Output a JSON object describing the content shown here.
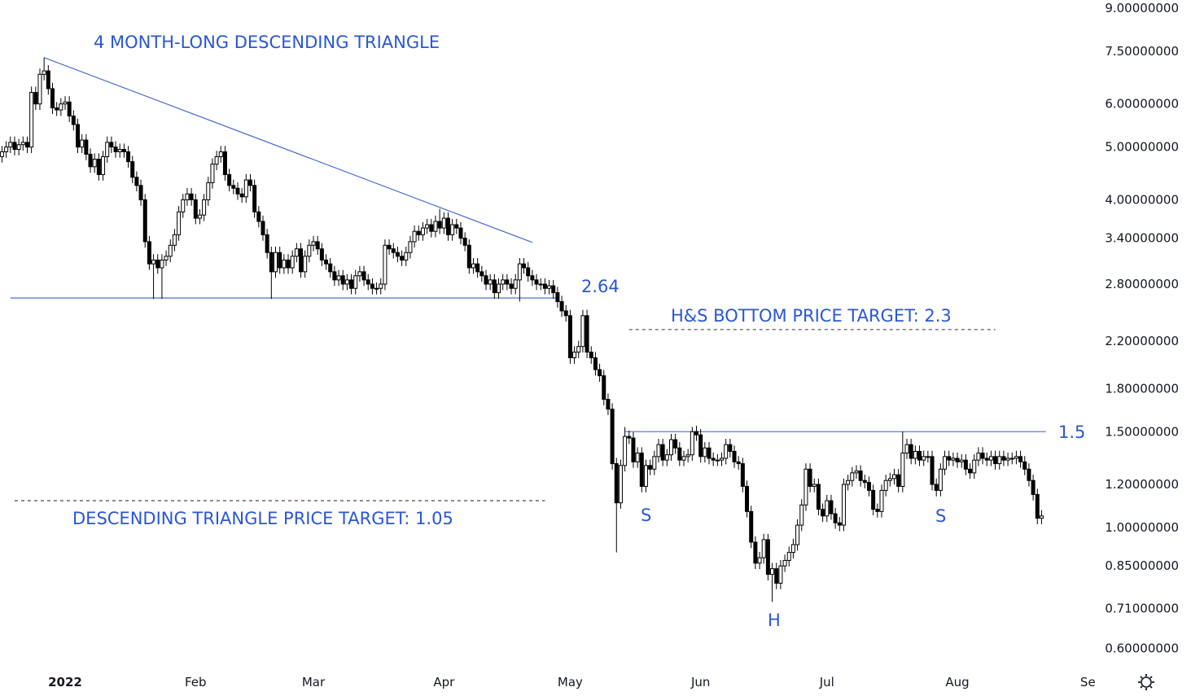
{
  "chart_data": {
    "type": "candlestick",
    "title": "",
    "y_scale": "log",
    "ylim": [
      0.56,
      9.3
    ],
    "grid": false,
    "interval": "1D",
    "x_start": "2021-12-17",
    "close": [
      4.9,
      5.0,
      5.1,
      4.95,
      5.05,
      5.1,
      5.0,
      6.3,
      6.0,
      6.8,
      6.9,
      6.4,
      5.9,
      5.85,
      6.0,
      6.05,
      5.7,
      5.5,
      5.0,
      5.15,
      4.85,
      4.6,
      4.75,
      4.45,
      4.8,
      5.1,
      5.0,
      4.9,
      4.95,
      4.9,
      4.7,
      4.4,
      4.25,
      4.0,
      3.35,
      3.05,
      3.1,
      3.0,
      3.1,
      3.15,
      3.3,
      3.45,
      3.8,
      4.0,
      4.1,
      4.0,
      3.7,
      3.75,
      4.0,
      4.3,
      4.65,
      4.8,
      4.9,
      4.45,
      4.25,
      4.2,
      4.1,
      4.05,
      4.35,
      4.25,
      3.8,
      3.65,
      3.45,
      3.2,
      2.95,
      3.2,
      3.0,
      3.1,
      3.0,
      3.15,
      3.25,
      2.95,
      3.15,
      3.3,
      3.35,
      3.25,
      3.1,
      3.05,
      2.95,
      2.85,
      2.9,
      2.8,
      2.85,
      2.75,
      2.9,
      2.95,
      2.85,
      2.8,
      2.75,
      2.75,
      2.8,
      3.3,
      3.25,
      3.2,
      3.15,
      3.1,
      3.2,
      3.35,
      3.5,
      3.45,
      3.55,
      3.6,
      3.5,
      3.65,
      3.55,
      3.7,
      3.45,
      3.6,
      3.55,
      3.4,
      3.3,
      3.0,
      3.05,
      2.95,
      2.9,
      2.8,
      2.85,
      2.7,
      2.8,
      2.85,
      2.8,
      2.75,
      2.85,
      3.05,
      3.0,
      2.9,
      2.85,
      2.8,
      2.8,
      2.75,
      2.78,
      2.7,
      2.6,
      2.5,
      2.45,
      2.05,
      2.1,
      2.15,
      2.45,
      2.1,
      2.05,
      1.95,
      1.9,
      1.72,
      1.65,
      1.31,
      1.11,
      1.3,
      1.47,
      1.46,
      1.32,
      1.37,
      1.19,
      1.3,
      1.28,
      1.35,
      1.42,
      1.33,
      1.36,
      1.45,
      1.4,
      1.33,
      1.35,
      1.36,
      1.5,
      1.48,
      1.35,
      1.4,
      1.34,
      1.33,
      1.33,
      1.34,
      1.42,
      1.38,
      1.32,
      1.31,
      1.19,
      1.07,
      0.94,
      0.86,
      0.88,
      0.95,
      0.82,
      0.84,
      0.79,
      0.85,
      0.87,
      0.9,
      0.93,
      1.01,
      1.1,
      1.28,
      1.19,
      1.2,
      1.08,
      1.05,
      1.12,
      1.06,
      1.02,
      1.01,
      1.2,
      1.22,
      1.26,
      1.27,
      1.22,
      1.21,
      1.17,
      1.08,
      1.07,
      1.17,
      1.22,
      1.23,
      1.25,
      1.19,
      1.37,
      1.42,
      1.34,
      1.38,
      1.33,
      1.35,
      1.35,
      1.2,
      1.17,
      1.28,
      1.35,
      1.33,
      1.34,
      1.32,
      1.33,
      1.28,
      1.26,
      1.33,
      1.37,
      1.34,
      1.33,
      1.35,
      1.31,
      1.35,
      1.33,
      1.34,
      1.34,
      1.35,
      1.32,
      1.28,
      1.22,
      1.15,
      1.04,
      1.05
    ],
    "wick_extremes": [
      {
        "date": "2021-12-27",
        "high": 7.3
      },
      {
        "date": "2022-01-22",
        "low": 2.63
      },
      {
        "date": "2022-01-24",
        "low": 2.63
      },
      {
        "date": "2022-02-19",
        "low": 2.63
      },
      {
        "date": "2022-03-31",
        "high": 3.85
      },
      {
        "date": "2022-04-19",
        "low": 2.6
      },
      {
        "date": "2022-05-12",
        "low": 0.9
      },
      {
        "date": "2022-05-14",
        "high": 1.53
      },
      {
        "date": "2022-05-30",
        "high": 1.53
      },
      {
        "date": "2022-06-18",
        "low": 0.73
      },
      {
        "date": "2022-07-19",
        "high": 1.5
      }
    ],
    "y_ticks": [
      "9.00000000",
      "7.50000000",
      "6.00000000",
      "5.00000000",
      "4.00000000",
      "3.40000000",
      "2.80000000",
      "2.20000000",
      "1.80000000",
      "1.50000000",
      "1.20000000",
      "1.00000000",
      "0.85000000",
      "0.71000000",
      "0.60000000"
    ],
    "x_ticks": [
      {
        "label": "2022",
        "date": "2022-01-01",
        "bold": true
      },
      {
        "label": "Feb",
        "date": "2022-02-01"
      },
      {
        "label": "Mar",
        "date": "2022-03-01"
      },
      {
        "label": "Apr",
        "date": "2022-04-01"
      },
      {
        "label": "May",
        "date": "2022-05-01"
      },
      {
        "label": "Jun",
        "date": "2022-06-01"
      },
      {
        "label": "Jul",
        "date": "2022-07-01"
      },
      {
        "label": "Aug",
        "date": "2022-08-01"
      },
      {
        "label": "Se",
        "date": "2022-09-01"
      }
    ],
    "drawings": [
      {
        "kind": "trendline",
        "style": "solid",
        "from": {
          "date": "2021-12-27",
          "price": 7.3
        },
        "to": {
          "date": "2022-04-22",
          "price": 3.34
        }
      },
      {
        "kind": "horizontal",
        "style": "solid",
        "price": 2.64,
        "from": "2021-12-19",
        "to": "2022-04-28"
      },
      {
        "kind": "horizontal",
        "style": "dashed",
        "price": 1.12,
        "from": "2021-12-20",
        "to": "2022-04-25"
      },
      {
        "kind": "horizontal",
        "style": "dashed",
        "price": 2.31,
        "from": "2022-05-15",
        "to": "2022-08-10"
      },
      {
        "kind": "horizontal",
        "style": "solid",
        "price": 1.5,
        "from": "2022-05-14",
        "to": "2022-08-22"
      }
    ],
    "annotations": {
      "triangle_title": "4 MONTH-LONG DESCENDING TRIANGLE",
      "support_level": "2.64",
      "hs_target": "H&S BOTTOM PRICE TARGET: 2.3",
      "neckline_level": "1.5",
      "triangle_target": "DESCENDING TRIANGLE PRICE TARGET: 1.05",
      "left_shoulder": "S",
      "head": "H",
      "right_shoulder": "S"
    },
    "colors": {
      "drawing": "#3a5fd0",
      "annotation": "#2a56d6",
      "candle": "#000000"
    }
  },
  "ui": {
    "settings_icon": "gear-icon"
  }
}
